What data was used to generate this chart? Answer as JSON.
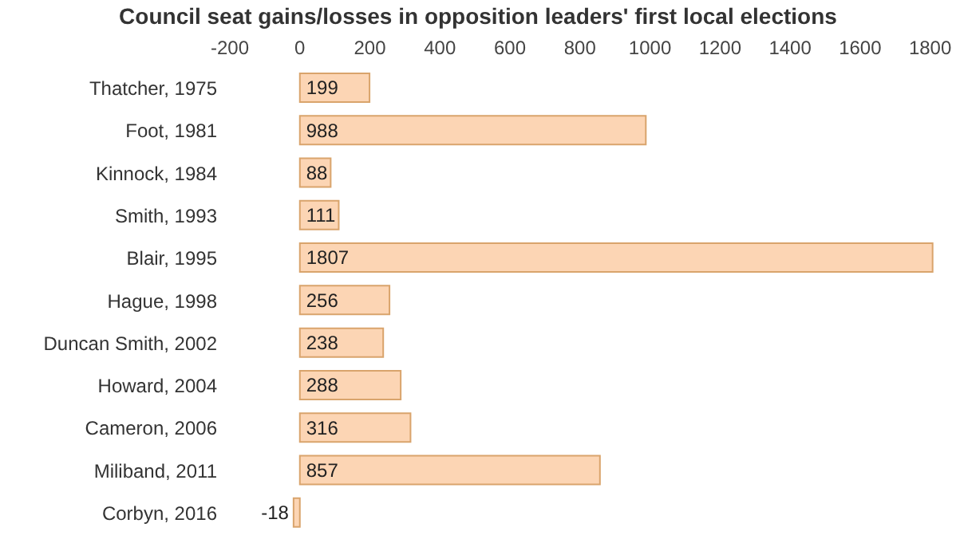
{
  "chart_data": {
    "type": "bar",
    "orientation": "horizontal",
    "title": "Council seat gains/losses in opposition leaders' first local elections",
    "categories": [
      "Thatcher, 1975",
      "Foot, 1981",
      "Kinnock, 1984",
      "Smith, 1993",
      "Blair, 1995",
      "Hague, 1998",
      "Duncan Smith, 2002",
      "Howard, 2004",
      "Cameron, 2006",
      "Miliband, 2011",
      "Corbyn, 2016"
    ],
    "values": [
      199,
      988,
      88,
      111,
      1807,
      256,
      238,
      288,
      316,
      857,
      -18
    ],
    "color": "#fcd5b4",
    "xlim": [
      -200,
      1810
    ],
    "xticks": [
      -200,
      0,
      200,
      400,
      600,
      800,
      1000,
      1200,
      1400,
      1600,
      1800
    ],
    "data_labels": true
  }
}
